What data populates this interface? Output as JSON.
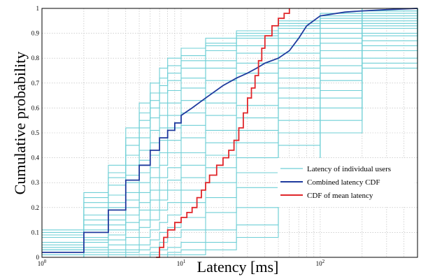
{
  "chart_data": {
    "type": "line",
    "xlabel": "Latency [ms]",
    "ylabel": "Cumulative probability",
    "x_scale": "log",
    "xlim": [
      1,
      500
    ],
    "ylim": [
      0,
      1
    ],
    "grid": true,
    "legend_position": "lower-right",
    "x_ticks": [
      {
        "value": 1,
        "base": "10",
        "exp": "0"
      },
      {
        "value": 10,
        "base": "10",
        "exp": "1"
      },
      {
        "value": 100,
        "base": "10",
        "exp": "2"
      }
    ],
    "y_ticks": [
      "0",
      "0.1",
      "0.2",
      "0.3",
      "0.4",
      "0.5",
      "0.6",
      "0.7",
      "0.8",
      "0.9",
      "1"
    ],
    "legend": [
      {
        "label": "Latency of individual users",
        "color": "#6fcfd6"
      },
      {
        "label": "Combined latency CDF",
        "color": "#1f3b9e"
      },
      {
        "label": "CDF of mean latency",
        "color": "#e0262a"
      }
    ],
    "series": [
      {
        "name": "Combined latency CDF",
        "color": "#1f3b9e",
        "x": [
          1,
          2,
          2,
          3,
          3,
          4,
          4,
          5,
          5,
          6,
          6,
          7,
          7,
          8,
          8,
          9,
          9,
          10,
          10,
          12,
          15,
          20,
          25,
          30,
          35,
          40,
          50,
          60,
          70,
          80,
          100,
          150,
          200,
          300,
          500
        ],
        "y": [
          0.02,
          0.02,
          0.1,
          0.1,
          0.19,
          0.19,
          0.31,
          0.31,
          0.37,
          0.37,
          0.43,
          0.43,
          0.48,
          0.48,
          0.51,
          0.51,
          0.54,
          0.54,
          0.57,
          0.6,
          0.64,
          0.69,
          0.72,
          0.74,
          0.76,
          0.78,
          0.8,
          0.83,
          0.88,
          0.93,
          0.97,
          0.985,
          0.99,
          0.995,
          1.0
        ]
      },
      {
        "name": "CDF of mean latency",
        "color": "#e0262a",
        "x": [
          6.6,
          7,
          7.5,
          8,
          9,
          10,
          11,
          12,
          13,
          14,
          15,
          16,
          18,
          20,
          22,
          24,
          26,
          28,
          30,
          32,
          34,
          36,
          38,
          40,
          45,
          50,
          55,
          60
        ],
        "y": [
          0.0,
          0.04,
          0.08,
          0.11,
          0.14,
          0.16,
          0.18,
          0.2,
          0.24,
          0.27,
          0.3,
          0.33,
          0.37,
          0.4,
          0.43,
          0.47,
          0.52,
          0.58,
          0.64,
          0.68,
          0.73,
          0.79,
          0.84,
          0.89,
          0.93,
          0.96,
          0.98,
          1.0
        ]
      }
    ],
    "individual_users": [
      {
        "x": [
          1,
          2,
          3,
          4,
          5,
          6,
          7,
          8,
          10,
          15,
          25,
          50,
          100,
          200,
          500
        ],
        "y": [
          0.11,
          0.26,
          0.37,
          0.52,
          0.62,
          0.7,
          0.76,
          0.8,
          0.84,
          0.88,
          0.91,
          0.95,
          0.98,
          1.0,
          1.0
        ]
      },
      {
        "x": [
          1,
          2,
          3,
          4,
          5,
          6,
          7,
          8,
          10,
          15,
          25,
          50,
          100,
          200,
          500
        ],
        "y": [
          0.1,
          0.24,
          0.34,
          0.48,
          0.58,
          0.66,
          0.72,
          0.77,
          0.81,
          0.86,
          0.9,
          0.94,
          0.98,
          1.0,
          1.0
        ]
      },
      {
        "x": [
          1,
          2,
          3,
          4,
          5,
          6,
          7,
          8,
          10,
          15,
          25,
          50,
          100,
          200,
          500
        ],
        "y": [
          0.09,
          0.22,
          0.32,
          0.45,
          0.55,
          0.63,
          0.69,
          0.74,
          0.79,
          0.85,
          0.89,
          0.93,
          0.97,
          0.99,
          1.0
        ]
      },
      {
        "x": [
          1,
          2,
          3,
          4,
          5,
          6,
          7,
          8,
          10,
          15,
          25,
          50,
          100,
          200,
          500
        ],
        "y": [
          0.08,
          0.2,
          0.29,
          0.41,
          0.52,
          0.6,
          0.66,
          0.71,
          0.76,
          0.83,
          0.88,
          0.92,
          0.96,
          0.99,
          1.0
        ]
      },
      {
        "x": [
          1,
          2,
          3,
          4,
          5,
          6,
          7,
          8,
          10,
          15,
          25,
          50,
          100,
          200,
          500
        ],
        "y": [
          0.06,
          0.17,
          0.25,
          0.37,
          0.48,
          0.56,
          0.62,
          0.67,
          0.72,
          0.79,
          0.85,
          0.9,
          0.95,
          0.99,
          1.0
        ]
      },
      {
        "x": [
          1,
          2,
          3,
          4,
          5,
          6,
          7,
          8,
          10,
          15,
          25,
          50,
          100,
          200,
          500
        ],
        "y": [
          0.05,
          0.15,
          0.22,
          0.33,
          0.43,
          0.51,
          0.57,
          0.62,
          0.68,
          0.76,
          0.82,
          0.88,
          0.94,
          0.98,
          1.0
        ]
      },
      {
        "x": [
          1,
          2,
          3,
          4,
          5,
          6,
          7,
          8,
          10,
          15,
          25,
          50,
          100,
          200,
          500
        ],
        "y": [
          0.04,
          0.13,
          0.2,
          0.3,
          0.39,
          0.46,
          0.52,
          0.57,
          0.63,
          0.71,
          0.78,
          0.85,
          0.92,
          0.97,
          1.0
        ]
      },
      {
        "x": [
          1,
          2,
          3,
          4,
          5,
          6,
          7,
          8,
          10,
          15,
          25,
          50,
          100,
          200,
          500
        ],
        "y": [
          0.03,
          0.11,
          0.17,
          0.26,
          0.34,
          0.41,
          0.47,
          0.52,
          0.58,
          0.66,
          0.74,
          0.82,
          0.9,
          0.96,
          1.0
        ]
      },
      {
        "x": [
          1,
          2,
          3,
          4,
          5,
          6,
          7,
          8,
          10,
          15,
          25,
          50,
          100,
          200,
          500
        ],
        "y": [
          0.03,
          0.1,
          0.15,
          0.23,
          0.3,
          0.36,
          0.42,
          0.47,
          0.53,
          0.62,
          0.7,
          0.79,
          0.88,
          0.95,
          1.0
        ]
      },
      {
        "x": [
          1,
          2,
          3,
          4,
          5,
          6,
          7,
          8,
          10,
          15,
          25,
          50,
          100,
          200,
          500
        ],
        "y": [
          0.02,
          0.08,
          0.13,
          0.2,
          0.26,
          0.32,
          0.37,
          0.42,
          0.48,
          0.57,
          0.66,
          0.76,
          0.86,
          0.94,
          1.0
        ]
      },
      {
        "x": [
          1,
          2,
          3,
          4,
          5,
          6,
          7,
          8,
          10,
          15,
          25,
          50,
          100,
          200,
          500
        ],
        "y": [
          0.02,
          0.07,
          0.11,
          0.17,
          0.22,
          0.27,
          0.32,
          0.36,
          0.42,
          0.51,
          0.61,
          0.72,
          0.83,
          0.93,
          1.0
        ]
      },
      {
        "x": [
          1,
          2,
          3,
          4,
          5,
          6,
          7,
          8,
          10,
          15,
          25,
          50,
          100,
          200,
          500
        ],
        "y": [
          0.01,
          0.06,
          0.09,
          0.14,
          0.19,
          0.23,
          0.27,
          0.31,
          0.37,
          0.46,
          0.56,
          0.68,
          0.8,
          0.92,
          1.0
        ]
      },
      {
        "x": [
          1,
          2,
          3,
          4,
          5,
          6,
          7,
          8,
          10,
          15,
          25,
          50,
          100,
          200,
          500
        ],
        "y": [
          0.01,
          0.04,
          0.07,
          0.11,
          0.15,
          0.19,
          0.23,
          0.27,
          0.32,
          0.41,
          0.51,
          0.64,
          0.77,
          0.9,
          1.0
        ]
      },
      {
        "x": [
          1,
          2,
          3,
          4,
          5,
          6,
          7,
          8,
          10,
          15,
          25,
          50,
          100,
          200,
          500
        ],
        "y": [
          0.0,
          0.03,
          0.05,
          0.08,
          0.12,
          0.15,
          0.19,
          0.22,
          0.27,
          0.36,
          0.46,
          0.6,
          0.74,
          0.89,
          1.0
        ]
      },
      {
        "x": [
          1,
          2,
          3,
          4,
          5,
          6,
          7,
          8,
          10,
          15,
          25,
          50,
          100,
          200,
          500
        ],
        "y": [
          0.0,
          0.02,
          0.03,
          0.05,
          0.08,
          0.11,
          0.14,
          0.17,
          0.22,
          0.3,
          0.4,
          0.55,
          0.71,
          0.87,
          1.0
        ]
      },
      {
        "x": [
          1,
          2,
          3,
          4,
          5,
          6,
          7,
          8,
          10,
          15,
          25,
          50,
          100,
          200,
          500
        ],
        "y": [
          0.0,
          0.01,
          0.02,
          0.03,
          0.05,
          0.07,
          0.1,
          0.12,
          0.16,
          0.24,
          0.34,
          0.5,
          0.67,
          0.85,
          1.0
        ]
      },
      {
        "x": [
          1,
          2,
          3,
          4,
          5,
          6,
          7,
          8,
          10,
          15,
          25,
          50,
          100,
          200,
          500
        ],
        "y": [
          0.0,
          0.0,
          0.01,
          0.02,
          0.03,
          0.04,
          0.06,
          0.08,
          0.11,
          0.18,
          0.28,
          0.45,
          0.64,
          0.83,
          1.0
        ]
      },
      {
        "x": [
          1,
          2,
          3,
          4,
          5,
          6,
          7,
          8,
          10,
          15,
          25,
          50,
          100,
          200,
          500
        ],
        "y": [
          0.0,
          0.0,
          0.0,
          0.01,
          0.01,
          0.02,
          0.03,
          0.04,
          0.06,
          0.11,
          0.2,
          0.38,
          0.6,
          0.8,
          1.0
        ]
      },
      {
        "x": [
          1,
          2,
          3,
          4,
          5,
          6,
          7,
          8,
          10,
          15,
          25,
          50,
          100,
          200,
          500
        ],
        "y": [
          0.0,
          0.0,
          0.0,
          0.0,
          0.0,
          0.01,
          0.01,
          0.02,
          0.03,
          0.06,
          0.13,
          0.3,
          0.55,
          0.78,
          1.0
        ]
      },
      {
        "x": [
          1,
          2,
          3,
          4,
          5,
          6,
          7,
          8,
          10,
          15,
          25,
          50,
          100,
          200,
          500
        ],
        "y": [
          0.0,
          0.0,
          0.0,
          0.0,
          0.0,
          0.0,
          0.0,
          0.01,
          0.01,
          0.03,
          0.08,
          0.22,
          0.5,
          0.76,
          1.0
        ]
      }
    ]
  }
}
